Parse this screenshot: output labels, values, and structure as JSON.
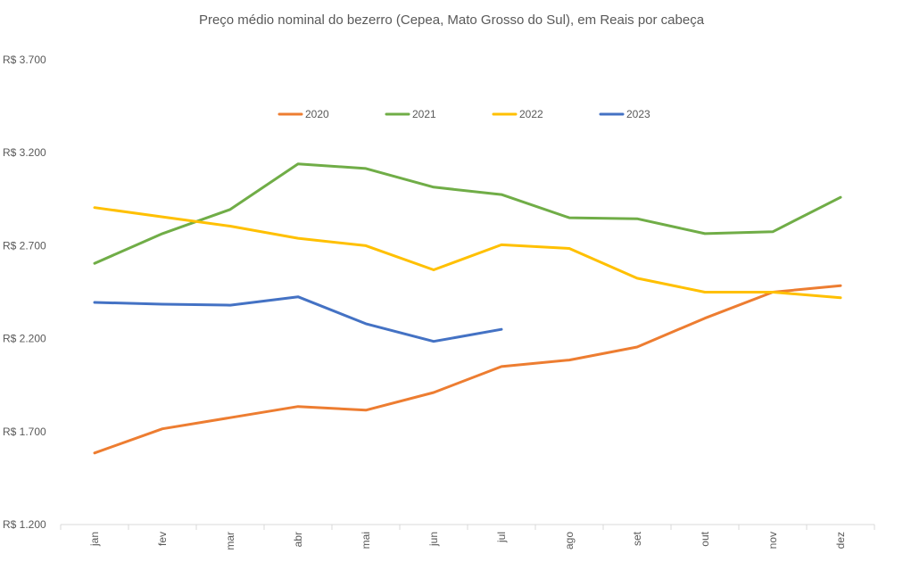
{
  "chart_data": {
    "type": "line",
    "title": "Preço médio nominal do bezerro (Cepea, Mato Grosso do Sul), em Reais por cabeça",
    "xlabel": "",
    "ylabel": "",
    "categories": [
      "jan",
      "fev",
      "mar",
      "abr",
      "mai",
      "jun",
      "jul",
      "ago",
      "set",
      "out",
      "nov",
      "dez"
    ],
    "ylim": [
      1200,
      3700
    ],
    "yticks": [
      1200,
      1700,
      2200,
      2700,
      3200,
      3700
    ],
    "ytick_labels": [
      "R$ 1.200",
      "R$ 1.700",
      "R$ 2.200",
      "R$ 2.700",
      "R$ 3.200",
      "R$ 3.700"
    ],
    "grid": false,
    "legend_position": "top",
    "series": [
      {
        "name": "2020",
        "color": "#ED7D31",
        "values": [
          1585,
          1715,
          1775,
          1835,
          1815,
          1910,
          2050,
          2085,
          2155,
          2310,
          2450,
          2485
        ]
      },
      {
        "name": "2021",
        "color": "#70AD47",
        "values": [
          2605,
          2765,
          2895,
          3140,
          3115,
          3015,
          2975,
          2850,
          2845,
          2765,
          2775,
          2960
        ]
      },
      {
        "name": "2022",
        "color": "#FFC000",
        "values": [
          2905,
          2855,
          2805,
          2740,
          2700,
          2570,
          2705,
          2685,
          2525,
          2450,
          2450,
          2420
        ]
      },
      {
        "name": "2023",
        "color": "#4472C4",
        "values": [
          2395,
          2385,
          2380,
          2425,
          2280,
          2185,
          2250,
          null,
          null,
          null,
          null,
          null
        ]
      }
    ]
  }
}
